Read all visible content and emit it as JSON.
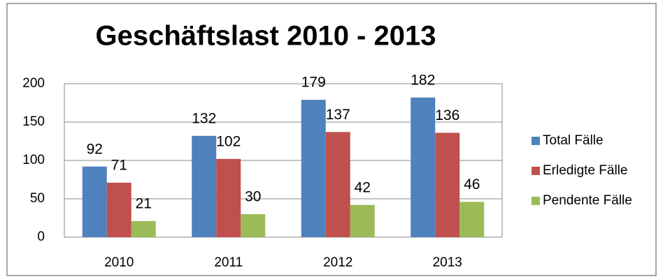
{
  "chart_data": {
    "type": "bar",
    "title": "Geschäftslast 2010 - 2013",
    "categories": [
      "2010",
      "2011",
      "2012",
      "2013"
    ],
    "series": [
      {
        "name": "Total Fälle",
        "color": "#4f81bd",
        "values": [
          92,
          132,
          179,
          182
        ]
      },
      {
        "name": "Erledigte Fälle",
        "color": "#c0504d",
        "values": [
          71,
          102,
          137,
          136
        ]
      },
      {
        "name": "Pendente Fälle",
        "color": "#9bbb59",
        "values": [
          21,
          30,
          42,
          46
        ]
      }
    ],
    "ylim": [
      0,
      200
    ],
    "yticks": [
      0,
      50,
      100,
      150,
      200
    ],
    "grid": true,
    "legend": "right"
  }
}
